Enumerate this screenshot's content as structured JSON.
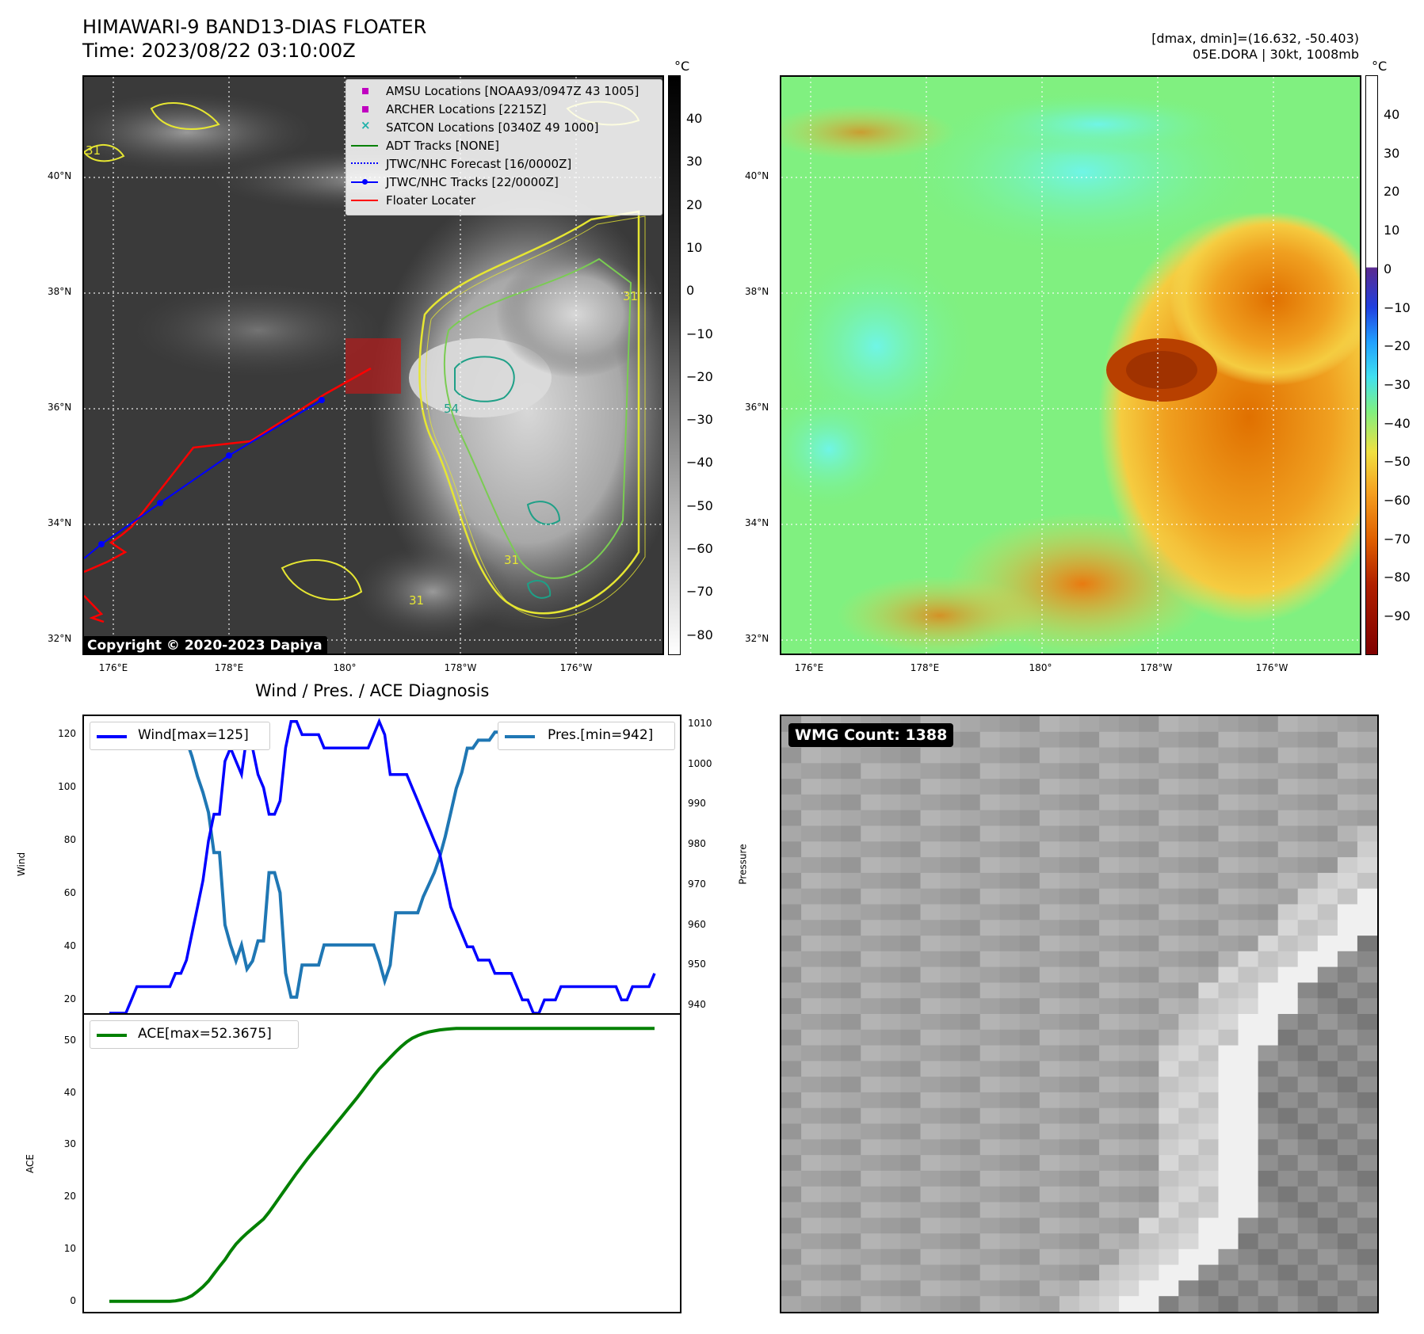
{
  "header": {
    "title_line1": "HIMAWARI-9 BAND13-DIAS FLOATER",
    "title_line2": "Time: 2023/08/22 03:10:00Z",
    "stats_line1": "[dmax, dmin]=(16.632, -50.403)",
    "stats_line2": "05E.DORA | 30kt, 1008mb"
  },
  "map_left": {
    "colorbar_unit": "°C",
    "colorbar_ticks": [
      "40",
      "30",
      "20",
      "10",
      "0",
      "−10",
      "−20",
      "−30",
      "−40",
      "−50",
      "−60",
      "−70",
      "−80"
    ],
    "lat_labels": [
      "40°N",
      "38°N",
      "36°N",
      "34°N",
      "32°N"
    ],
    "lon_labels": [
      "176°E",
      "178°E",
      "180°",
      "178°W",
      "176°W"
    ],
    "legend": [
      {
        "label": "AMSU Locations [NOAA93/0947Z 43 1005]",
        "marker": "square",
        "color": "#c000c0"
      },
      {
        "label": "ARCHER Locations [2215Z]",
        "marker": "square",
        "color": "#c000c0"
      },
      {
        "label": "SATCON Locations [0340Z 49 1000]",
        "marker": "x",
        "color": "#20b2aa"
      },
      {
        "label": "ADT Tracks [NONE]",
        "marker": "line",
        "color": "#008000"
      },
      {
        "label": "JTWC/NHC Forecast [16/0000Z]",
        "marker": "dotted",
        "color": "#0000ff"
      },
      {
        "label": "JTWC/NHC Tracks [22/0000Z]",
        "marker": "line-dot",
        "color": "#0000ff"
      },
      {
        "label": "Floater Locater",
        "marker": "line",
        "color": "#ff0000"
      }
    ],
    "copyright": "Copyright © 2020-2023 Dapiya",
    "contour_labels": [
      "31",
      "54",
      "31",
      "31",
      "31"
    ]
  },
  "map_right": {
    "colorbar_unit": "°C",
    "colorbar_ticks": [
      "40",
      "30",
      "20",
      "10",
      "0",
      "−10",
      "−20",
      "−30",
      "−40",
      "−50",
      "−60",
      "−70",
      "−80",
      "−90"
    ],
    "lat_labels": [
      "40°N",
      "38°N",
      "36°N",
      "34°N",
      "32°N"
    ],
    "lon_labels": [
      "176°E",
      "178°E",
      "180°",
      "178°W",
      "176°W"
    ]
  },
  "wmg": {
    "label": "WMG Count: 1388"
  },
  "colors": {
    "wind": "#0000ff",
    "pressure": "#1f77b4",
    "ace": "#008000",
    "track": "#0000ff",
    "floater": "#ff0000"
  },
  "chart_data": [
    {
      "type": "line",
      "title": "Wind / Pres. / ACE Diagnosis",
      "ylabel": "Wind",
      "y2label": "Pressure",
      "ylim": [
        15,
        127
      ],
      "y2lim": [
        938,
        1012
      ],
      "yticks": [
        "120",
        "100",
        "80",
        "60",
        "40",
        "20"
      ],
      "y2ticks": [
        "1010",
        "1000",
        "990",
        "980",
        "970",
        "960",
        "950",
        "940"
      ],
      "series": [
        {
          "name": "Wind[max=125]",
          "axis": "left",
          "values": [
            15,
            15,
            15,
            15,
            20,
            25,
            25,
            25,
            25,
            25,
            25,
            25,
            30,
            30,
            35,
            45,
            55,
            65,
            80,
            90,
            90,
            110,
            115,
            110,
            105,
            120,
            115,
            105,
            100,
            90,
            90,
            95,
            115,
            125,
            125,
            120,
            120,
            120,
            120,
            115,
            115,
            115,
            115,
            115,
            115,
            115,
            115,
            115,
            120,
            125,
            120,
            105,
            105,
            105,
            105,
            100,
            95,
            90,
            85,
            80,
            75,
            65,
            55,
            50,
            45,
            40,
            40,
            35,
            35,
            35,
            30,
            30,
            30,
            30,
            25,
            20,
            20,
            15,
            15,
            20,
            20,
            20,
            25,
            25,
            25,
            25,
            25,
            25,
            25,
            25,
            25,
            25,
            25,
            20,
            20,
            25,
            25,
            25,
            25,
            30
          ]
        },
        {
          "name": "Pres.[min=942]",
          "axis": "right",
          "values": [
            1010,
            1010,
            1010,
            1010,
            1010,
            1009,
            1009,
            1009,
            1008,
            1008,
            1008,
            1008,
            1008,
            1008,
            1006,
            1002,
            997,
            993,
            988,
            978,
            978,
            960,
            955,
            951,
            955,
            949,
            951,
            956,
            956,
            973,
            973,
            968,
            948,
            942,
            942,
            950,
            950,
            950,
            950,
            955,
            955,
            955,
            955,
            955,
            955,
            955,
            955,
            955,
            955,
            951,
            946,
            950,
            963,
            963,
            963,
            963,
            963,
            967,
            970,
            973,
            977,
            982,
            988,
            994,
            998,
            1004,
            1004,
            1006,
            1006,
            1006,
            1008,
            1008,
            1008,
            1007,
            1008,
            1009,
            1009,
            1010,
            1010,
            1009,
            1009,
            1009,
            1008,
            1008,
            1008,
            1008,
            1008,
            1008,
            1008,
            1008,
            1008,
            1008,
            1008,
            1008,
            1008,
            1008,
            1008,
            1008,
            1008,
            1008
          ]
        }
      ]
    },
    {
      "type": "line",
      "ylabel": "ACE",
      "ylim": [
        -2,
        55
      ],
      "yticks": [
        "50",
        "40",
        "30",
        "20",
        "10",
        "0"
      ],
      "series": [
        {
          "name": "ACE[max=52.3675]",
          "values": [
            0,
            0,
            0,
            0,
            0,
            0,
            0,
            0,
            0,
            0,
            0,
            0,
            0.1,
            0.3,
            0.6,
            1.1,
            1.9,
            2.8,
            3.9,
            5.3,
            6.7,
            8,
            9.6,
            11,
            12.1,
            13.1,
            14,
            14.9,
            15.8,
            17.1,
            18.6,
            20.1,
            21.6,
            23.1,
            24.6,
            26,
            27.4,
            28.7,
            30,
            31.3,
            32.6,
            33.9,
            35.2,
            36.5,
            37.8,
            39.1,
            40.5,
            41.9,
            43.3,
            44.6,
            45.7,
            46.8,
            47.9,
            48.9,
            49.8,
            50.5,
            51,
            51.4,
            51.7,
            51.9,
            52.1,
            52.2,
            52.3,
            52.37,
            52.37,
            52.37,
            52.37,
            52.37,
            52.37,
            52.37,
            52.37,
            52.37,
            52.37,
            52.37,
            52.37,
            52.37,
            52.37,
            52.37,
            52.37,
            52.37,
            52.37,
            52.37,
            52.37,
            52.37,
            52.37,
            52.37,
            52.37,
            52.37,
            52.37,
            52.37,
            52.37,
            52.37,
            52.37,
            52.37,
            52.37,
            52.37,
            52.37,
            52.37,
            52.37,
            52.37
          ]
        }
      ]
    }
  ]
}
